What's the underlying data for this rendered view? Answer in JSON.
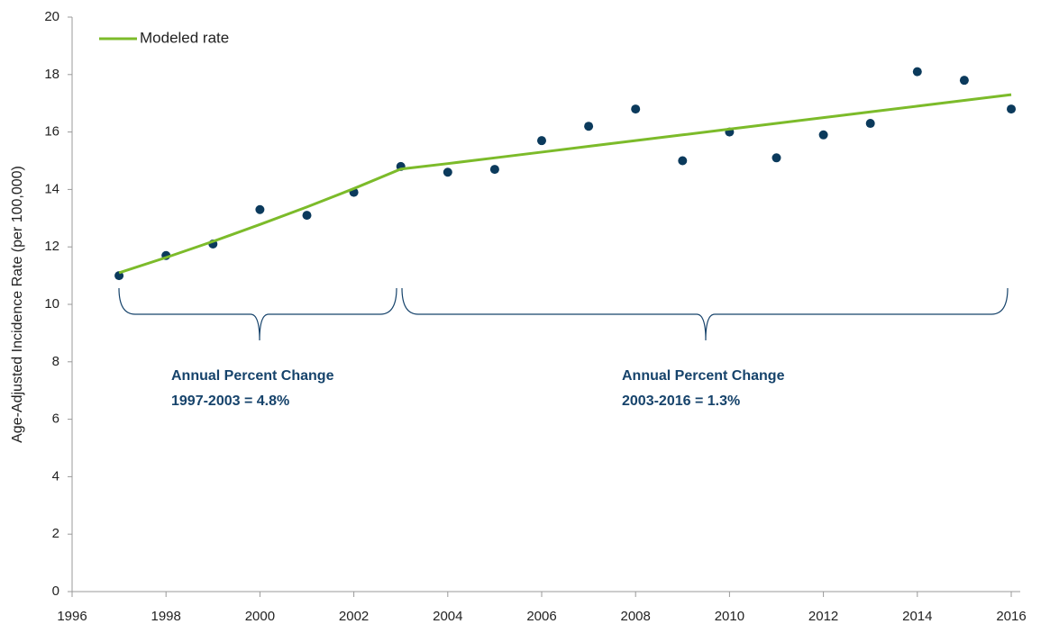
{
  "chart_data": {
    "type": "line",
    "y_label": "Age-Adjusted Incidence Rate (per 100,000)",
    "x": [
      1997,
      1998,
      1999,
      2000,
      2001,
      2002,
      2003,
      2004,
      2005,
      2006,
      2007,
      2008,
      2009,
      2010,
      2011,
      2012,
      2013,
      2014,
      2015,
      2016
    ],
    "series": [
      {
        "color": "#0b3a5c",
        "marker": "circle",
        "values": [
          11.0,
          11.7,
          12.1,
          13.3,
          13.1,
          13.9,
          14.8,
          14.6,
          14.7,
          15.7,
          16.2,
          16.8,
          15.0,
          16.0,
          15.1,
          15.9,
          16.3,
          18.1,
          17.8,
          16.8
        ]
      },
      {
        "name": "Modeled rate",
        "color": "#7cbb2a",
        "marker": "line",
        "values": [
          11.1,
          11.63,
          12.19,
          12.78,
          13.39,
          14.03,
          14.71,
          14.9,
          15.1,
          15.3,
          15.5,
          15.7,
          15.9,
          16.1,
          16.3,
          16.5,
          16.7,
          16.9,
          17.1,
          17.3
        ]
      }
    ],
    "annotations": [
      {
        "lines": [
          "Annual Percent Change",
          "1997-2003  = 4.8%"
        ]
      },
      {
        "lines": [
          "Annual Percent Change",
          "2003-2016  = 1.3%"
        ]
      }
    ],
    "xlim": [
      1996,
      2016
    ],
    "xticks": [
      1996,
      1998,
      2000,
      2002,
      2004,
      2006,
      2008,
      2010,
      2012,
      2014,
      2016
    ],
    "ylim": [
      0,
      20
    ],
    "yticks": [
      0,
      2,
      4,
      6,
      8,
      10,
      12,
      14,
      16,
      18,
      20
    ],
    "grid": false,
    "legend": "top-left"
  }
}
